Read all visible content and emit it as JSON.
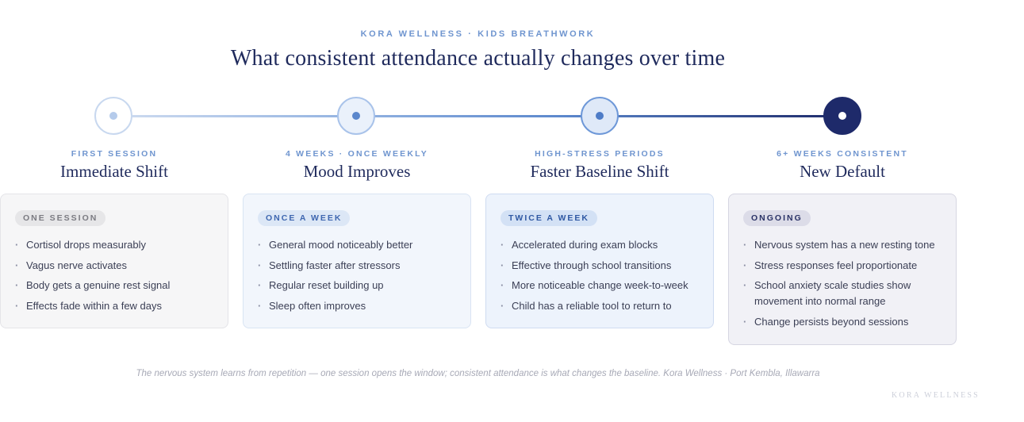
{
  "header": {
    "eyebrow": "KORA WELLNESS · KIDS BREATHWORK",
    "title": "What consistent attendance actually changes over time"
  },
  "stages": [
    {
      "kicker": "FIRST SESSION",
      "title": "Immediate Shift",
      "badge": "ONE SESSION",
      "items": [
        "Cortisol drops measurably",
        "Vagus nerve activates",
        "Body gets a genuine rest signal",
        "Effects fade within a few days"
      ]
    },
    {
      "kicker": "4 WEEKS · ONCE WEEKLY",
      "title": "Mood Improves",
      "badge": "ONCE A WEEK",
      "items": [
        "General mood noticeably better",
        "Settling faster after stressors",
        "Regular reset building up",
        "Sleep often improves"
      ]
    },
    {
      "kicker": "HIGH-STRESS PERIODS",
      "title": "Faster Baseline Shift",
      "badge": "TWICE A WEEK",
      "items": [
        "Accelerated during exam blocks",
        "Effective through school transitions",
        "More noticeable change week-to-week",
        "Child has a reliable tool to return to"
      ]
    },
    {
      "kicker": "6+ WEEKS CONSISTENT",
      "title": "New Default",
      "badge": "ONGOING",
      "items": [
        "Nervous system has a new resting tone",
        "Stress responses feel proportionate",
        "School anxiety scale studies show movement into normal range",
        "Change persists beyond sessions"
      ]
    }
  ],
  "footer": {
    "note": "The nervous system learns from repetition — one session opens the window; consistent attendance is what changes the baseline. Kora Wellness · Port Kembla, Illawarra",
    "brand": "KORA WELLNESS"
  },
  "colors": {
    "accent_light": "#6f95cf",
    "accent_dark": "#1e2a6a",
    "title": "#1f2a5c"
  }
}
